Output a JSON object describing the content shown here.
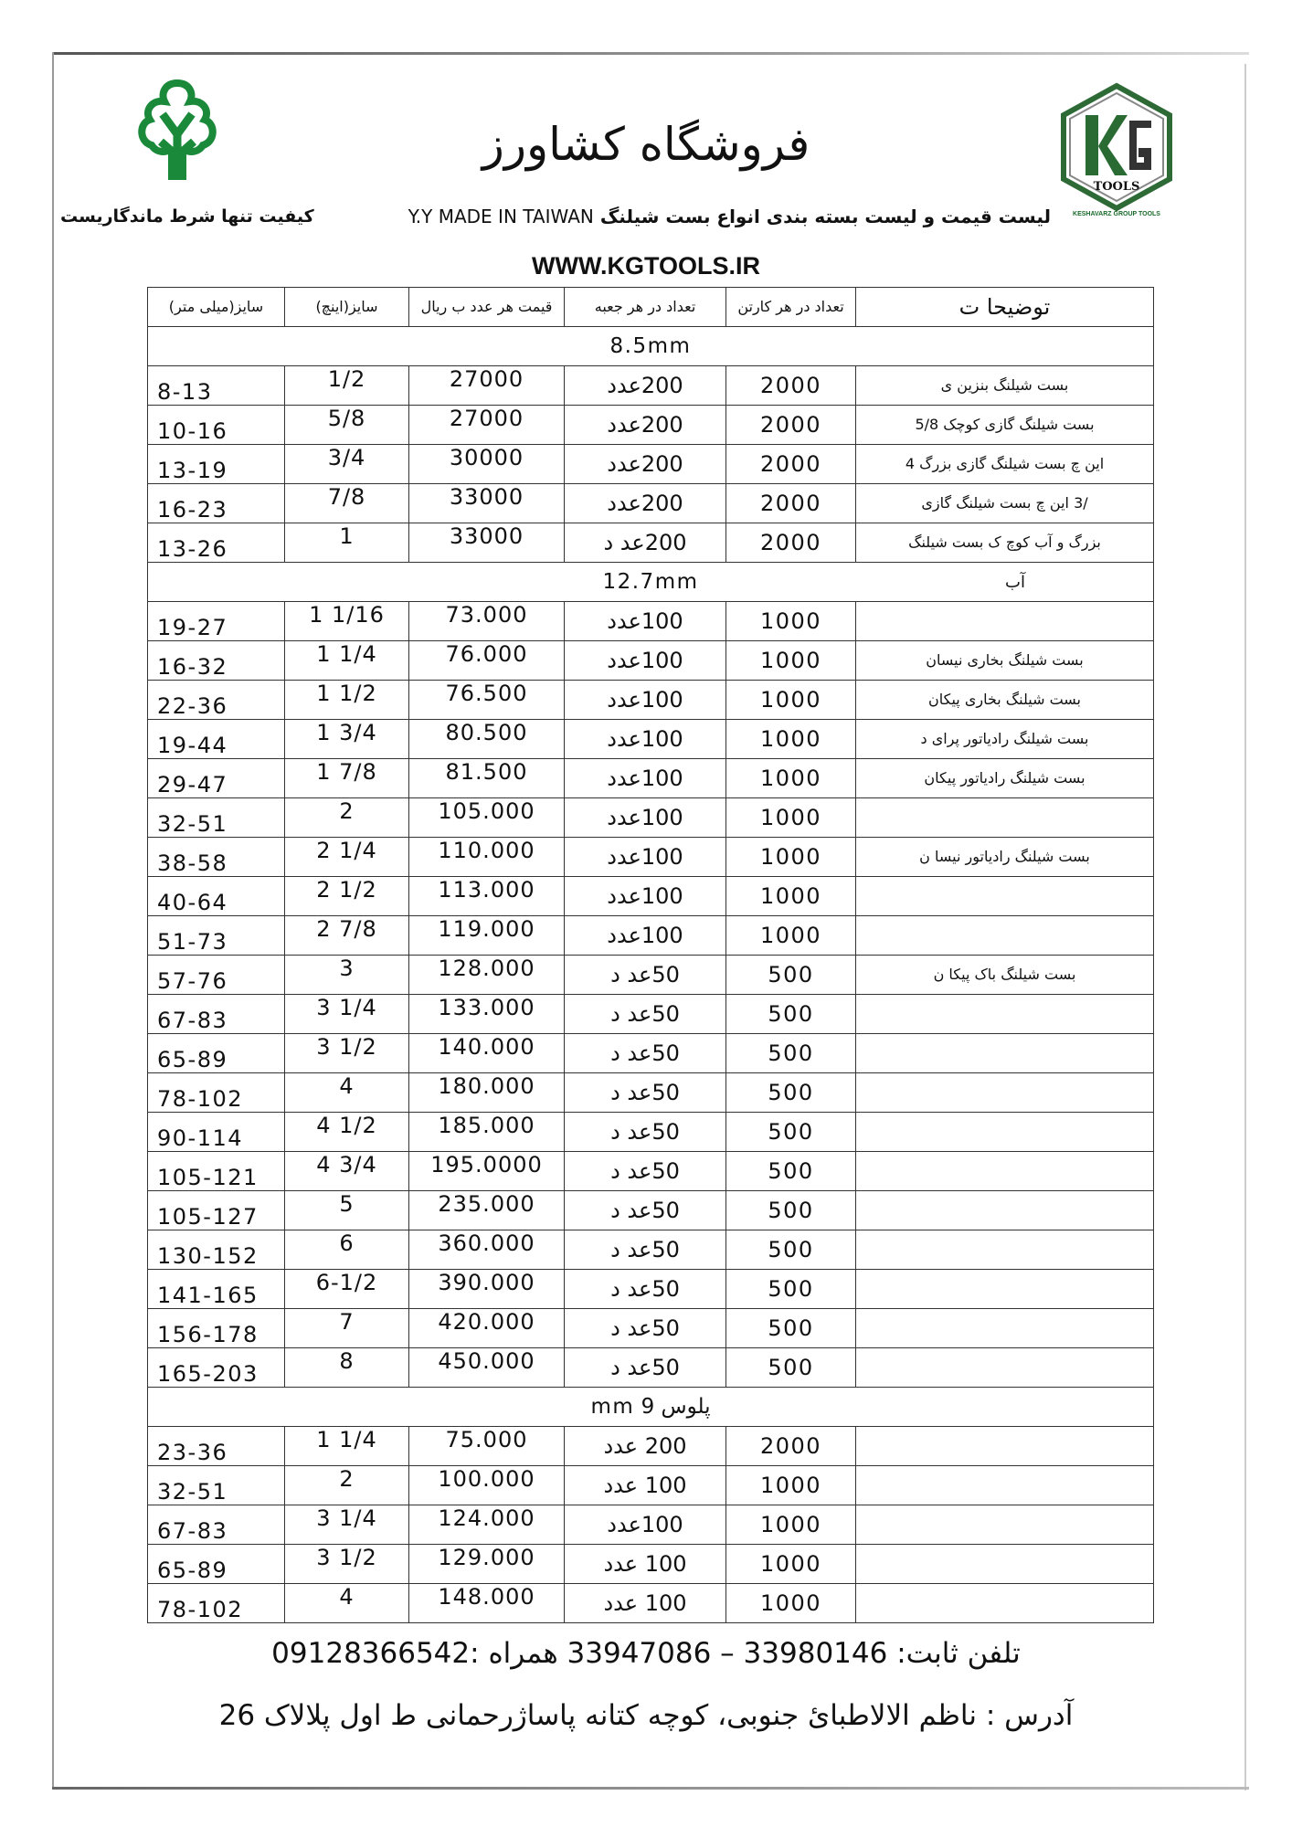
{
  "header": {
    "title": "فروشگاه کشاورز",
    "subtitle": "لیست قیمت و لیست بسته بندی انواع بست شیلنگ",
    "brand_line": "Y.Y MADE IN TAIWAN",
    "quality_slogan": "کیفیت تنها شرط ماندگاریست",
    "website": "WWW.KGTOOLS.IR",
    "logo_right_text": "TOOLS",
    "logo_right_caption": "KESHAVARZ GROUP TOOLS",
    "brand_color": "#1a8a3a"
  },
  "table": {
    "headers": {
      "mm": "سایز(میلی متر)",
      "inch": "سایز(اینچ)",
      "price": "قیمت هر عدد ب ریال",
      "box": "تعداد در هر جعبه",
      "carton": "تعداد در هر کارتن",
      "desc": "توضیحا ت"
    },
    "rows": [
      {
        "section": "8.5mm"
      },
      {
        "mm": "8-13",
        "inch": "1/2",
        "price": "27000",
        "box": "200عدد",
        "carton": "2000",
        "desc": "بست شیلنگ بنزین ی"
      },
      {
        "mm": "10-16",
        "inch": "5/8",
        "price": "27000",
        "box": "200عدد",
        "carton": "2000",
        "desc": "بست شیلنگ گازی کوچک 5/8"
      },
      {
        "mm": "13-19",
        "inch": "3/4",
        "price": "30000",
        "box": "200عدد",
        "carton": "2000",
        "desc": "این چ بست شیلنگ گازی بزرگ 4"
      },
      {
        "mm": "16-23",
        "inch": "7/8",
        "price": "33000",
        "box": "200عدد",
        "carton": "2000",
        "desc": "/3 این چ بست شیلنگ گازی"
      },
      {
        "mm": "13-26",
        "inch": "1",
        "price": "33000",
        "box": "200عد د",
        "carton": "2000",
        "desc": "بزرگ و آب کوچ ک بست شیلنگ"
      },
      {
        "section": "12.7mm",
        "note": "آب"
      },
      {
        "mm": "19-27",
        "inch": "1 1/16",
        "price": "73.000",
        "box": "100عدد",
        "carton": "1000",
        "desc": ""
      },
      {
        "mm": "16-32",
        "inch": "1 1/4",
        "price": "76.000",
        "box": "100عدد",
        "carton": "1000",
        "desc": "بست شیلنگ بخاری نیسان"
      },
      {
        "mm": "22-36",
        "inch": "1 1/2",
        "price": "76.500",
        "box": "100عدد",
        "carton": "1000",
        "desc": "بست شیلنگ بخاری پیکان"
      },
      {
        "mm": "19-44",
        "inch": "1 3/4",
        "price": "80.500",
        "box": "100عدد",
        "carton": "1000",
        "desc": "بست شیلنگ رادیاتور پرای د"
      },
      {
        "mm": "29-47",
        "inch": "1 7/8",
        "price": "81.500",
        "box": "100عدد",
        "carton": "1000",
        "desc": "بست شیلنگ رادیاتور پیکان"
      },
      {
        "mm": "32-51",
        "inch": "2",
        "price": "105.000",
        "box": "100عدد",
        "carton": "1000",
        "desc": ""
      },
      {
        "mm": "38-58",
        "inch": "2 1/4",
        "price": "110.000",
        "box": "100عدد",
        "carton": "1000",
        "desc": "بست شیلنگ رادیاتور نیسا ن"
      },
      {
        "mm": "40-64",
        "inch": "2 1/2",
        "price": "113.000",
        "box": "100عدد",
        "carton": "1000",
        "desc": ""
      },
      {
        "mm": "51-73",
        "inch": "2 7/8",
        "price": "119.000",
        "box": "100عدد",
        "carton": "1000",
        "desc": ""
      },
      {
        "mm": "57-76",
        "inch": "3",
        "price": "128.000",
        "box": "50عد د",
        "carton": "500",
        "desc": "بست شیلنگ باک پیکا ن"
      },
      {
        "mm": "67-83",
        "inch": "3 1/4",
        "price": "133.000",
        "box": "50عد د",
        "carton": "500",
        "desc": ""
      },
      {
        "mm": "65-89",
        "inch": "3 1/2",
        "price": "140.000",
        "box": "50عد د",
        "carton": "500",
        "desc": ""
      },
      {
        "mm": "78-102",
        "inch": "4",
        "price": "180.000",
        "box": "50عد د",
        "carton": "500",
        "desc": ""
      },
      {
        "mm": "90-114",
        "inch": "4 1/2",
        "price": "185.000",
        "box": "50عد د",
        "carton": "500",
        "desc": ""
      },
      {
        "mm": "105-121",
        "inch": "4 3/4",
        "price": "195.0000",
        "box": "50عد د",
        "carton": "500",
        "desc": ""
      },
      {
        "mm": "105-127",
        "inch": "5",
        "price": "235.000",
        "box": "50عد د",
        "carton": "500",
        "desc": ""
      },
      {
        "mm": "130-152",
        "inch": "6",
        "price": "360.000",
        "box": "50عد د",
        "carton": "500",
        "desc": ""
      },
      {
        "mm": "141-165",
        "inch": "6-1/2",
        "price": "390.000",
        "box": "50عد د",
        "carton": "500",
        "desc": ""
      },
      {
        "mm": "156-178",
        "inch": "7",
        "price": "420.000",
        "box": "50عد د",
        "carton": "500",
        "desc": ""
      },
      {
        "mm": "165-203",
        "inch": "8",
        "price": "450.000",
        "box": "50عد د",
        "carton": "500",
        "desc": ""
      },
      {
        "section": "پلوس 9 mm"
      },
      {
        "mm": "23-36",
        "inch": "1 1/4",
        "price": "75.000",
        "box": "200 عدد",
        "carton": "2000",
        "desc": ""
      },
      {
        "mm": "32-51",
        "inch": "2",
        "price": "100.000",
        "box": "100 عدد",
        "carton": "1000",
        "desc": ""
      },
      {
        "mm": "67-83",
        "inch": "3 1/4",
        "price": "124.000",
        "box": "100عدد",
        "carton": "1000",
        "desc": ""
      },
      {
        "mm": "65-89",
        "inch": "3 1/2",
        "price": "129.000",
        "box": "100 عدد",
        "carton": "1000",
        "desc": ""
      },
      {
        "mm": "78-102",
        "inch": "4",
        "price": "148.000",
        "box": "100 عدد",
        "carton": "1000",
        "desc": ""
      }
    ]
  },
  "footer": {
    "phone": "تلفن ثابت: 33980146 – 33947086 همراه :09128366542",
    "address": "آدرس : ناظم الالاطبائ جنوبی، کوچه کتانه پاساژرحمانی ط اول پلالاک 26"
  }
}
